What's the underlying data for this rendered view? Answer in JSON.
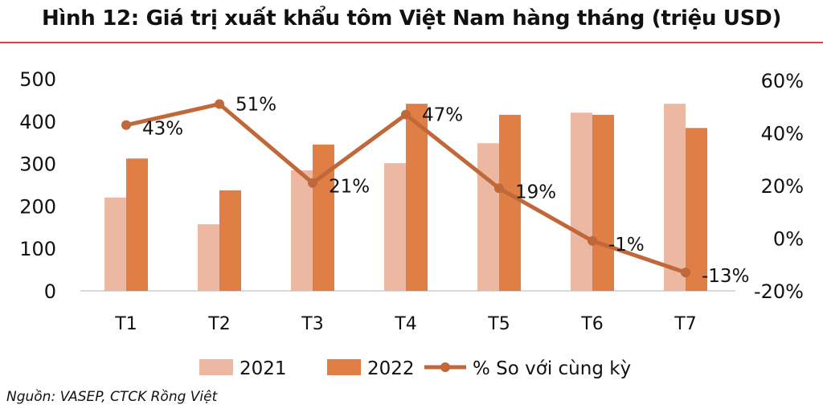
{
  "chart_data": {
    "type": "bar",
    "title": "Hình 12: Giá trị xuất khẩu tôm Việt Nam hàng tháng (triệu USD)",
    "categories": [
      "T1",
      "T2",
      "T3",
      "T4",
      "T5",
      "T6",
      "T7"
    ],
    "series": [
      {
        "name": "2021",
        "type": "bar",
        "axis": "left",
        "color": "#EDB8A2",
        "values": [
          220,
          157,
          284,
          301,
          348,
          420,
          441
        ]
      },
      {
        "name": "2022",
        "type": "bar",
        "axis": "left",
        "color": "#E07F45",
        "values": [
          312,
          237,
          345,
          441,
          415,
          415,
          384
        ]
      },
      {
        "name": "% So với cùng kỳ",
        "type": "line",
        "axis": "right",
        "color": "#C0683A",
        "values": [
          43,
          51,
          21,
          47,
          19,
          -1,
          -13
        ],
        "labels": [
          "43%",
          "51%",
          "21%",
          "47%",
          "19%",
          "-1%",
          "-13%"
        ]
      }
    ],
    "left_axis": {
      "ylim": [
        0,
        500
      ],
      "ticks": [
        "0",
        "100",
        "200",
        "300",
        "400",
        "500"
      ]
    },
    "right_axis": {
      "ylim": [
        -20,
        60
      ],
      "ticks": [
        "-20%",
        "0%",
        "20%",
        "40%",
        "60%"
      ]
    },
    "grid": false,
    "legend": "bottom"
  },
  "source": "Nguồn: VASEP, CTCK Rồng Việt"
}
